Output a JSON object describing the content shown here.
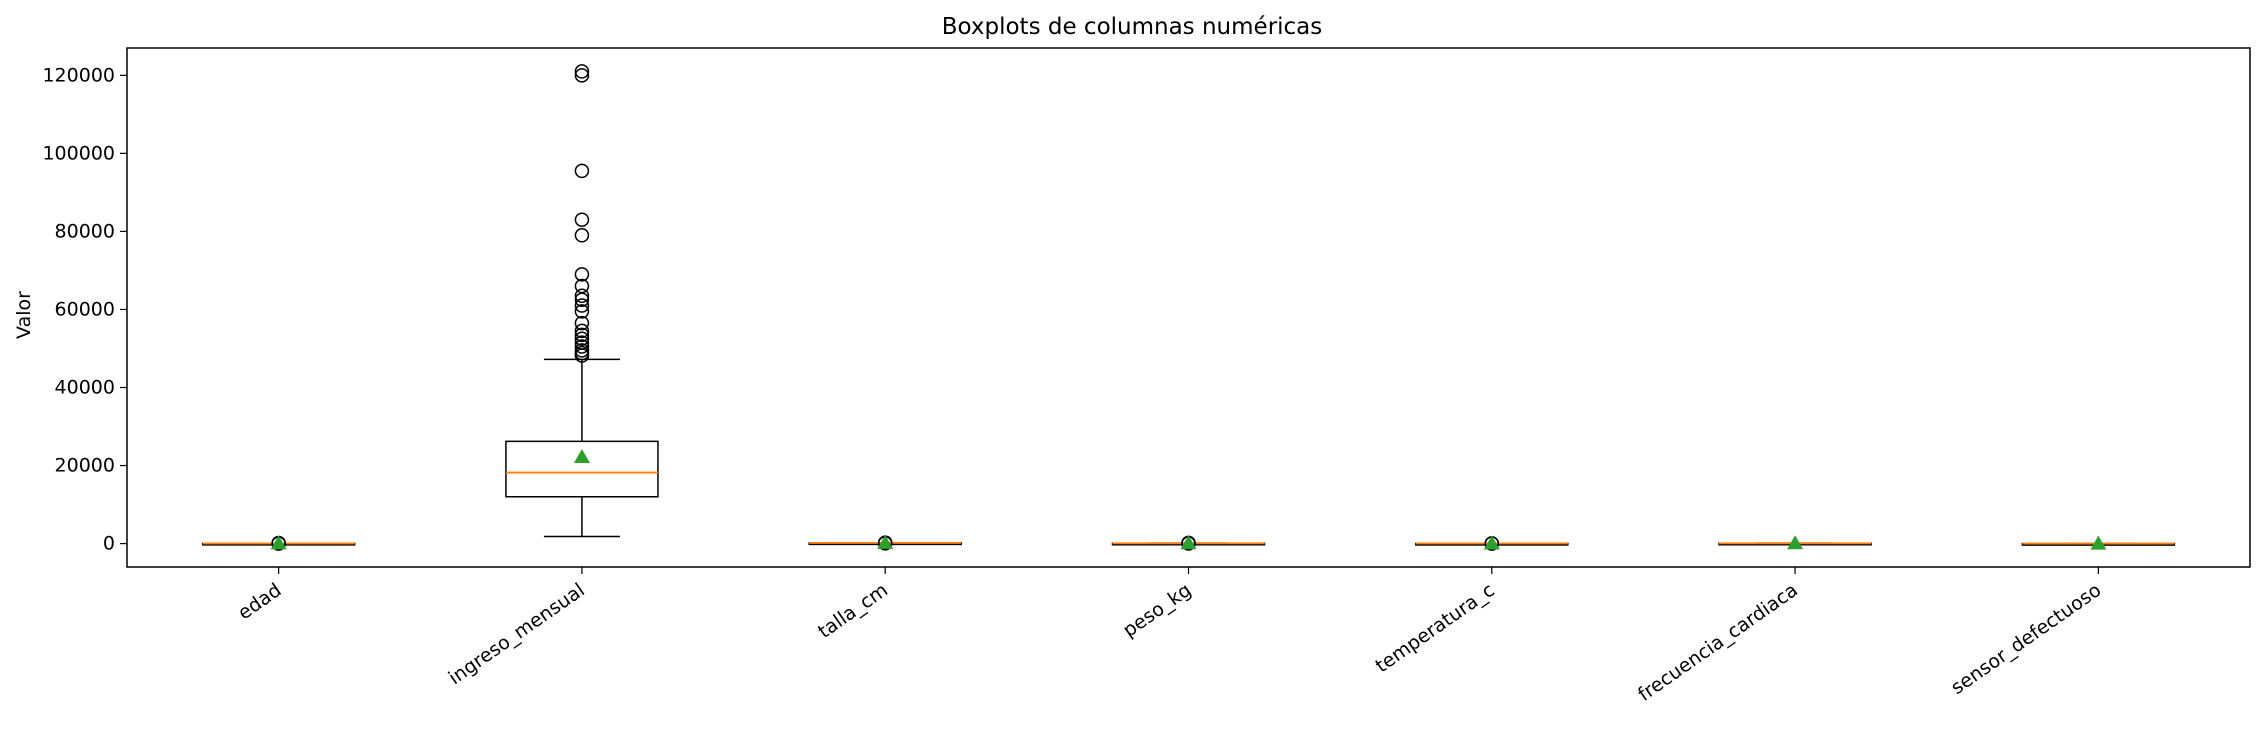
{
  "chart_data": {
    "type": "box",
    "title": "Boxplots de columnas numéricas",
    "xlabel": "",
    "ylabel": "Valor",
    "ylim": [
      -6000,
      127000
    ],
    "yticks": [
      0,
      20000,
      40000,
      60000,
      80000,
      100000,
      120000
    ],
    "ytick_labels": [
      "0",
      "20000",
      "40000",
      "60000",
      "80000",
      "100000",
      "120000"
    ],
    "grid": false,
    "categories": [
      "edad",
      "ingreso_mensual",
      "talla_cm",
      "peso_kg",
      "temperatura_c",
      "frecuencia_cardiaca",
      "sensor_defectuoso"
    ],
    "boxes": [
      {
        "name": "edad",
        "whisker_low": 18,
        "q1": 30,
        "median": 41,
        "q3": 52,
        "whisker_high": 80,
        "mean": 42,
        "outliers": [
          -5,
          140
        ]
      },
      {
        "name": "ingreso_mensual",
        "whisker_low": 1800,
        "q1": 12000,
        "median": 18200,
        "q3": 26200,
        "whisker_high": 47200,
        "mean": 22200,
        "outliers": [
          48200,
          48800,
          49500,
          50500,
          51500,
          52500,
          53500,
          54500,
          56500,
          59500,
          61000,
          62500,
          63500,
          66000,
          69000,
          79000,
          83000,
          95500,
          120000,
          121000
        ]
      },
      {
        "name": "talla_cm",
        "whisker_low": 145,
        "q1": 160,
        "median": 168,
        "q3": 176,
        "whisker_high": 195,
        "mean": 168,
        "outliers": [
          60,
          250
        ]
      },
      {
        "name": "peso_kg",
        "whisker_low": 45,
        "q1": 60,
        "median": 70,
        "q3": 80,
        "whisker_high": 105,
        "mean": 71,
        "outliers": [
          10,
          180
        ]
      },
      {
        "name": "temperatura_c",
        "whisker_low": 35.5,
        "q1": 36.4,
        "median": 36.8,
        "q3": 37.2,
        "whisker_high": 38.1,
        "mean": 36.8,
        "outliers": [
          -10,
          60
        ]
      },
      {
        "name": "frecuencia_cardiaca",
        "whisker_low": 50,
        "q1": 65,
        "median": 75,
        "q3": 85,
        "whisker_high": 110,
        "mean": 75,
        "outliers": []
      },
      {
        "name": "sensor_defectuoso",
        "whisker_low": 0,
        "q1": 0,
        "median": 0,
        "q3": 0,
        "whisker_high": 0,
        "mean": 0,
        "outliers": []
      }
    ],
    "colors": {
      "box": "#000000",
      "median": "#ff7f0e",
      "mean": "#2ca02c",
      "outlier": "#000000"
    }
  }
}
